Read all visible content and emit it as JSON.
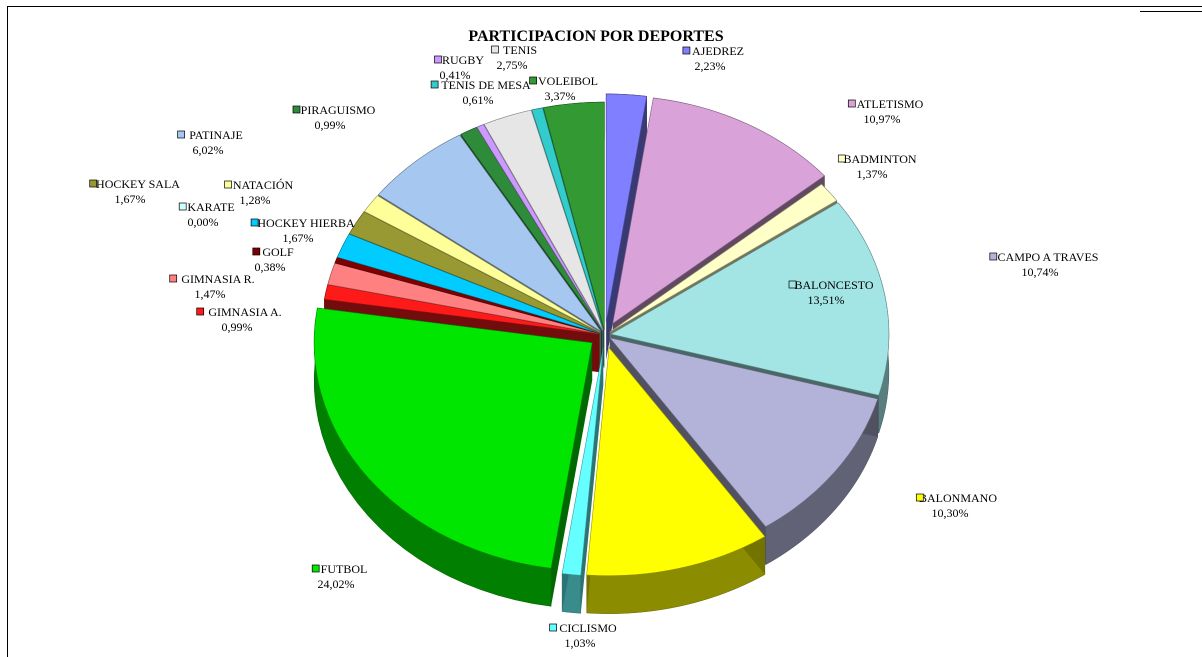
{
  "chart_data": {
    "type": "pie",
    "title": "PARTICIPACION POR DEPORTES",
    "slices": [
      {
        "name": "AJEDREZ",
        "label": "2,23%",
        "value": 2.23,
        "color": "#7f7fff"
      },
      {
        "name": "ATLETISMO",
        "label": "10,97%",
        "value": 10.97,
        "color": "#d9a3d9"
      },
      {
        "name": "BADMINTON",
        "label": "1,37%",
        "value": 1.37,
        "color": "#ffffc8"
      },
      {
        "name": "BALONCESTO",
        "label": "13,51%",
        "value": 13.51,
        "color": "#a3e4e4"
      },
      {
        "name": "CAMPO A TRAVES",
        "label": "10,74%",
        "value": 10.74,
        "color": "#b3b3d9"
      },
      {
        "name": "BALONMANO",
        "label": "10,30%",
        "value": 10.3,
        "color": "#ffff00"
      },
      {
        "name": "CICLISMO",
        "label": "1,03%",
        "value": 1.03,
        "color": "#66ffff"
      },
      {
        "name": "FUTBOL",
        "label": "24,02%",
        "value": 24.02,
        "color": "#00e600"
      },
      {
        "name": "GIMNASIA A.",
        "label": "0,99%",
        "value": 0.99,
        "color": "#ff1a1a"
      },
      {
        "name": "GIMNASIA R.",
        "label": "1,47%",
        "value": 1.47,
        "color": "#ff8080"
      },
      {
        "name": "GOLF",
        "label": "0,38%",
        "value": 0.38,
        "color": "#800000"
      },
      {
        "name": "HOCKEY HIERBA",
        "label": "1,67%",
        "value": 1.67,
        "color": "#00ccff"
      },
      {
        "name": "HOCKEY SALA",
        "label": "1,67%",
        "value": 1.67,
        "color": "#999933"
      },
      {
        "name": "KARATE",
        "label": "0,00%",
        "value": 0.0,
        "color": "#ccffff"
      },
      {
        "name": "NATACIÓN",
        "label": "1,28%",
        "value": 1.28,
        "color": "#ffff99"
      },
      {
        "name": "PATINAJE",
        "label": "6,02%",
        "value": 6.02,
        "color": "#a6c8f0"
      },
      {
        "name": "PIRAGUISMO",
        "label": "0,99%",
        "value": 0.99,
        "color": "#2e8b3a"
      },
      {
        "name": "RUGBY",
        "label": "0,41%",
        "value": 0.41,
        "color": "#cc99ff"
      },
      {
        "name": "TENIS",
        "label": "2,75%",
        "value": 2.75,
        "color": "#e6e6e6"
      },
      {
        "name": "TENIS DE MESA",
        "label": "0,61%",
        "value": 0.61,
        "color": "#33cccc"
      },
      {
        "name": "VOLEIBOL",
        "label": "3,37%",
        "value": 3.37,
        "color": "#339933"
      }
    ]
  }
}
